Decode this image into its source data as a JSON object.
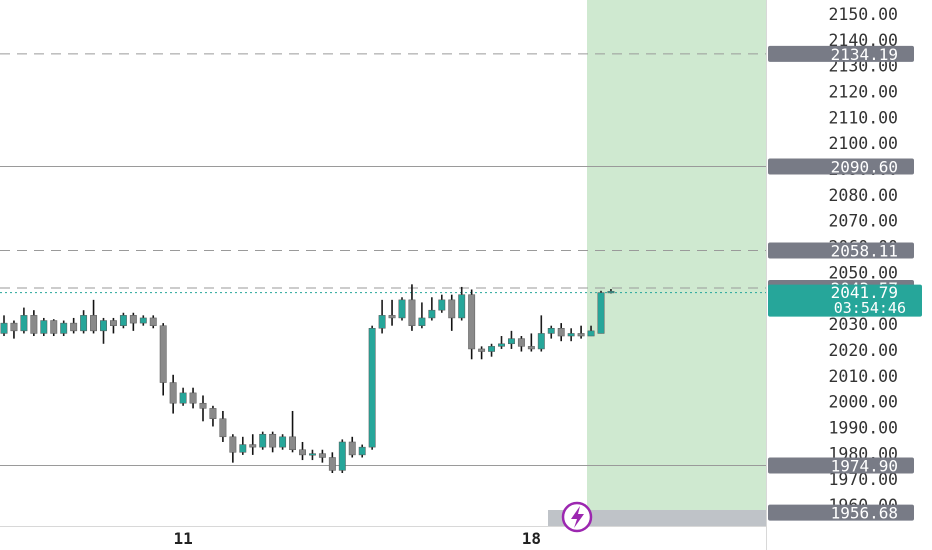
{
  "chart_data": {
    "type": "candlestick",
    "y_axis": {
      "position": "right",
      "ticks": [
        "2150.00",
        "2140.00",
        "2130.00",
        "2120.00",
        "2110.00",
        "2100.00",
        "2090.00",
        "2080.00",
        "2070.00",
        "2060.00",
        "2050.00",
        "2040.00",
        "2030.00",
        "2020.00",
        "2010.00",
        "2000.00",
        "1990.00",
        "1980.00",
        "1970.00",
        "1960.00"
      ],
      "range": [
        1954,
        2152
      ]
    },
    "x_axis": {
      "ticks": [
        {
          "label": "11",
          "index": 18
        },
        {
          "label": "18",
          "index": 53
        }
      ]
    },
    "price_levels": [
      {
        "label": "2134.19",
        "value": 2134.19,
        "style": "dashed"
      },
      {
        "label": "2090.60",
        "value": 2090.6,
        "style": "solid"
      },
      {
        "label": "2058.11",
        "value": 2058.11,
        "style": "dashed"
      },
      {
        "label": "2043.57",
        "value": 2043.57,
        "style": "dashed"
      },
      {
        "label": "1974.90",
        "value": 1974.9,
        "style": "solid"
      },
      {
        "label": "1956.68",
        "value": 1956.68,
        "style": "none"
      }
    ],
    "current_price": {
      "label": "2041.79",
      "value": 2041.79,
      "countdown": "03:54:46",
      "color": "#26a69a"
    },
    "highlight_zone": {
      "from_index": 60,
      "color": "#cfe9d0"
    },
    "colors": {
      "up": "#26a69a",
      "down": "#8a8a8a",
      "axis_text": "#333333",
      "label_bg": "#787b86"
    },
    "icon": "lightning-icon",
    "candles": [
      [
        2026.0,
        2030.0,
        2033.0,
        2025.0
      ],
      [
        2030.0,
        2027.0,
        2031.0,
        2024.0
      ],
      [
        2027.0,
        2033.0,
        2036.0,
        2026.0
      ],
      [
        2033.0,
        2026.0,
        2035.0,
        2025.0
      ],
      [
        2026.0,
        2031.0,
        2032.0,
        2025.0
      ],
      [
        2031.0,
        2026.0,
        2031.5,
        2025.0
      ],
      [
        2026.0,
        2030.0,
        2031.0,
        2025.0
      ],
      [
        2030.0,
        2027.0,
        2032.0,
        2026.0
      ],
      [
        2027.0,
        2033.0,
        2035.0,
        2026.0
      ],
      [
        2033.0,
        2027.0,
        2039.0,
        2026.0
      ],
      [
        2027.0,
        2031.0,
        2032.0,
        2022.0
      ],
      [
        2031.0,
        2029.0,
        2032.0,
        2026.0
      ],
      [
        2029.0,
        2033.0,
        2034.0,
        2028.0
      ],
      [
        2033.0,
        2030.0,
        2034.0,
        2027.0
      ],
      [
        2030.0,
        2032.0,
        2033.0,
        2029.0
      ],
      [
        2032.0,
        2029.0,
        2033.0,
        2028.0
      ],
      [
        2029.0,
        2007.0,
        2030.0,
        2002.0
      ],
      [
        2007.0,
        1999.0,
        2010.0,
        1995.0
      ],
      [
        1999.0,
        2003.0,
        2005.0,
        1998.0
      ],
      [
        2003.0,
        1999.0,
        2005.0,
        1997.0
      ],
      [
        1999.0,
        1997.0,
        2002.0,
        1992.0
      ],
      [
        1997.0,
        1993.0,
        1998.0,
        1990.0
      ],
      [
        1993.0,
        1986.0,
        1996.0,
        1984.0
      ],
      [
        1986.0,
        1980.0,
        1987.0,
        1976.0
      ],
      [
        1980.0,
        1983.0,
        1986.0,
        1979.0
      ],
      [
        1983.0,
        1982.0,
        1987.0,
        1979.0
      ],
      [
        1982.0,
        1987.0,
        1988.0,
        1981.0
      ],
      [
        1987.0,
        1982.0,
        1988.0,
        1980.0
      ],
      [
        1982.0,
        1986.0,
        1987.0,
        1981.0
      ],
      [
        1986.0,
        1981.0,
        1996.0,
        1980.0
      ],
      [
        1981.0,
        1979.0,
        1984.0,
        1977.0
      ],
      [
        1979.0,
        1979.5,
        1981.0,
        1977.0
      ],
      [
        1979.5,
        1978.0,
        1981.0,
        1976.0
      ],
      [
        1978.0,
        1973.0,
        1980.0,
        1972.0
      ],
      [
        1973.0,
        1984.0,
        1985.0,
        1972.0
      ],
      [
        1984.0,
        1979.0,
        1986.0,
        1978.0
      ],
      [
        1979.0,
        1982.0,
        1983.0,
        1978.0
      ],
      [
        1982.0,
        2028.0,
        2029.0,
        1981.0
      ],
      [
        2028.0,
        2033.0,
        2039.0,
        2026.0
      ],
      [
        2033.0,
        2032.0,
        2039.0,
        2029.0
      ],
      [
        2032.0,
        2039.0,
        2040.0,
        2031.0
      ],
      [
        2039.0,
        2029.0,
        2045.0,
        2027.0
      ],
      [
        2029.0,
        2032.0,
        2038.0,
        2028.0
      ],
      [
        2032.0,
        2035.0,
        2040.0,
        2031.0
      ],
      [
        2035.0,
        2039.0,
        2041.0,
        2034.0
      ],
      [
        2039.0,
        2032.0,
        2041.0,
        2027.0
      ],
      [
        2032.0,
        2041.0,
        2044.0,
        2031.0
      ],
      [
        2041.0,
        2020.0,
        2043.0,
        2016.0
      ],
      [
        2020.0,
        2019.0,
        2021.0,
        2016.0
      ],
      [
        2019.0,
        2021.0,
        2022.0,
        2017.0
      ],
      [
        2021.0,
        2022.0,
        2025.0,
        2020.0
      ],
      [
        2022.0,
        2024.0,
        2027.0,
        2020.0
      ],
      [
        2024.0,
        2021.0,
        2025.0,
        2019.0
      ],
      [
        2021.0,
        2020.0,
        2026.0,
        2019.0
      ],
      [
        2020.0,
        2026.0,
        2033.0,
        2019.0
      ],
      [
        2026.0,
        2028.0,
        2029.0,
        2024.0
      ],
      [
        2028.0,
        2025.0,
        2030.0,
        2023.0
      ],
      [
        2025.0,
        2026.0,
        2028.0,
        2023.0
      ],
      [
        2026.0,
        2025.0,
        2029.0,
        2024.0
      ],
      [
        2025.0,
        2027.0,
        2029.0,
        2025.0
      ],
      [
        2026.0,
        2041.8,
        2042.5,
        2026.0
      ],
      [
        2041.8,
        2042.3,
        2043.2,
        2041.5
      ]
    ]
  }
}
